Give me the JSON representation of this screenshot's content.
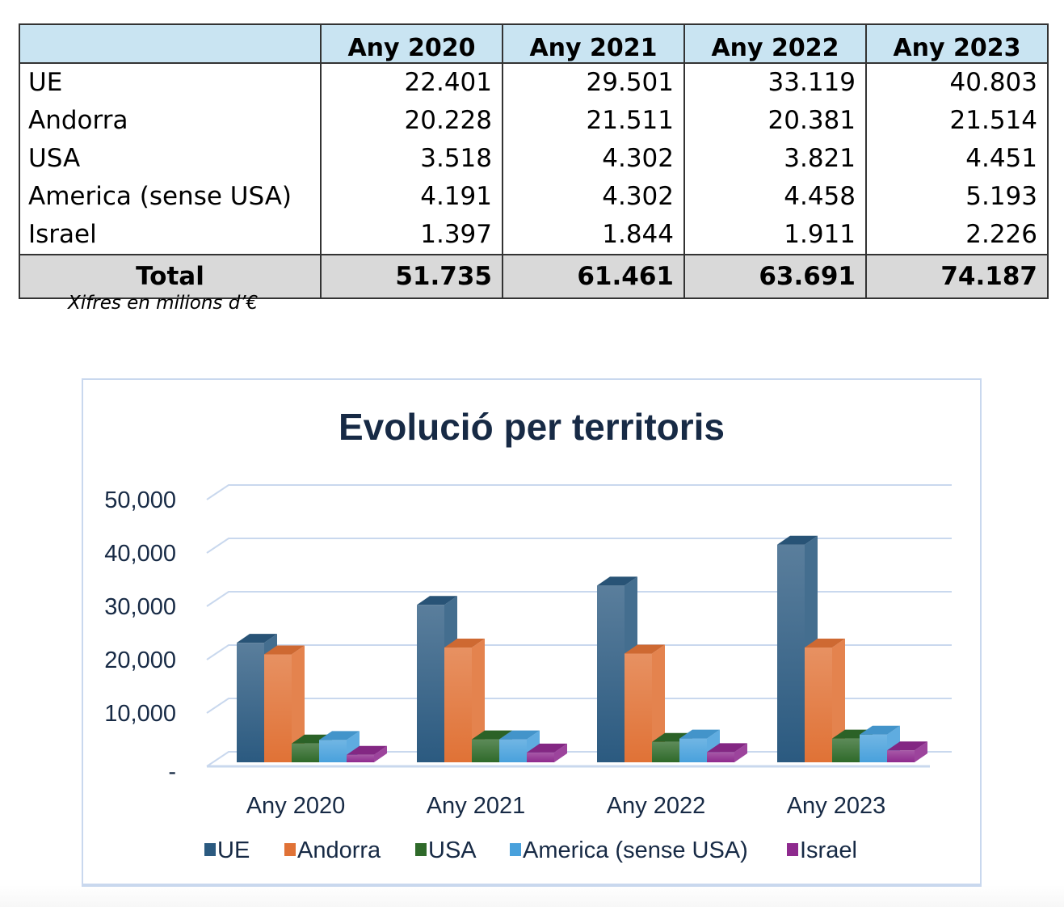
{
  "table": {
    "header": [
      "",
      "Any 2020",
      "Any 2021",
      "Any 2022",
      "Any 2023"
    ],
    "rows": [
      {
        "label": "UE",
        "values": [
          "22.401",
          "29.501",
          "33.119",
          "40.803"
        ]
      },
      {
        "label": "Andorra",
        "values": [
          "20.228",
          "21.511",
          "20.381",
          "21.514"
        ]
      },
      {
        "label": "USA",
        "values": [
          "3.518",
          "4.302",
          "3.821",
          "4.451"
        ]
      },
      {
        "label": "America (sense USA)",
        "values": [
          "4.191",
          "4.302",
          "4.458",
          "5.193"
        ]
      },
      {
        "label": "Israel",
        "values": [
          "1.397",
          "1.844",
          "1.911",
          "2.226"
        ]
      }
    ],
    "total": {
      "label": "Total",
      "values": [
        "51.735",
        "61.461",
        "63.691",
        "74.187"
      ]
    },
    "note": "Xifres en milions d’€",
    "colors": {
      "header_bg": "#c9e4f2",
      "total_bg": "#d9d9d9"
    }
  },
  "chart_data": {
    "type": "bar",
    "style": "3d-clustered-column",
    "title": "Evolució per territoris",
    "xlabel": "",
    "ylabel": "",
    "categories": [
      "Any 2020",
      "Any 2021",
      "Any 2022",
      "Any 2023"
    ],
    "series": [
      {
        "name": "UE",
        "color": "#2b5a80",
        "values": [
          22401,
          29501,
          33119,
          40803
        ]
      },
      {
        "name": "Andorra",
        "color": "#e07236",
        "values": [
          20228,
          21511,
          20381,
          21514
        ]
      },
      {
        "name": "USA",
        "color": "#2f6a2a",
        "values": [
          3518,
          4302,
          3821,
          4451
        ]
      },
      {
        "name": "America (sense USA)",
        "color": "#49a1dc",
        "values": [
          4191,
          4302,
          4458,
          5193
        ]
      },
      {
        "name": "Israel",
        "color": "#8e2a8e",
        "values": [
          1397,
          1844,
          1911,
          2226
        ]
      }
    ],
    "ylim": [
      0,
      50000
    ],
    "yticks": [
      0,
      10000,
      20000,
      30000,
      40000,
      50000
    ],
    "ytick_labels": [
      "-",
      "10,000",
      "20,000",
      "30,000",
      "40,000",
      "50,000"
    ],
    "grid": true,
    "legend": {
      "position": "bottom",
      "entries": [
        "UE",
        "Andorra",
        "USA",
        "America (sense USA)",
        "Israel"
      ]
    },
    "colors": {
      "title": "#172a45",
      "gridline": "#c9d8ee",
      "frame": "#c9d8ee"
    }
  }
}
